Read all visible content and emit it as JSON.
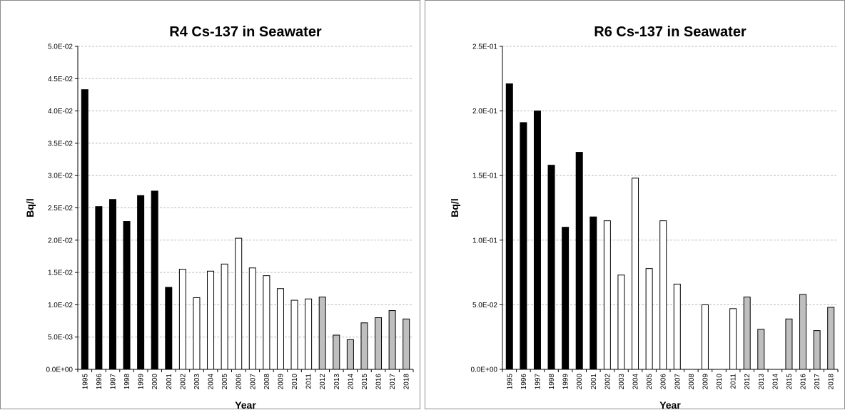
{
  "chart_data": [
    {
      "type": "bar",
      "title": "R4 Cs-137 in Seawater",
      "xlabel": "Year",
      "ylabel": "Bq/l",
      "ylim": [
        0,
        0.05
      ],
      "yticks": [
        "0.0E+00",
        "5.0E-03",
        "1.0E-02",
        "1.5E-02",
        "2.0E-02",
        "2.5E-02",
        "3.0E-02",
        "3.5E-02",
        "4.0E-02",
        "4.5E-02",
        "5.0E-02"
      ],
      "grid": true,
      "categories": [
        "1995",
        "1996",
        "1997",
        "1998",
        "1999",
        "2000",
        "2001",
        "2002",
        "2003",
        "2004",
        "2005",
        "2006",
        "2007",
        "2008",
        "2009",
        "2010",
        "2011",
        "2012",
        "2013",
        "2014",
        "2015",
        "2016",
        "2017",
        "2018"
      ],
      "values": [
        0.0433,
        0.0252,
        0.0263,
        0.0229,
        0.0269,
        0.0276,
        0.0127,
        0.0155,
        0.0111,
        0.0152,
        0.0163,
        0.0203,
        0.0157,
        0.0145,
        0.0125,
        0.0107,
        0.0109,
        0.0112,
        0.0053,
        0.0046,
        0.0072,
        0.008,
        0.0091,
        0.0078
      ],
      "bar_colors": [
        "#000000",
        "#000000",
        "#000000",
        "#000000",
        "#000000",
        "#000000",
        "#000000",
        "#ffffff",
        "#ffffff",
        "#ffffff",
        "#ffffff",
        "#ffffff",
        "#ffffff",
        "#ffffff",
        "#ffffff",
        "#ffffff",
        "#ffffff",
        "#bfbfbf",
        "#bfbfbf",
        "#bfbfbf",
        "#bfbfbf",
        "#bfbfbf",
        "#bfbfbf",
        "#bfbfbf"
      ]
    },
    {
      "type": "bar",
      "title": "R6 Cs-137 in Seawater",
      "xlabel": "Year",
      "ylabel": "Bq/l",
      "ylim": [
        0,
        0.25
      ],
      "yticks": [
        "0.0E+00",
        "5.0E-02",
        "1.0E-01",
        "1.5E-01",
        "2.0E-01",
        "2.5E-01"
      ],
      "grid": true,
      "categories": [
        "1995",
        "1996",
        "1997",
        "1998",
        "1999",
        "2000",
        "2001",
        "2002",
        "2003",
        "2004",
        "2005",
        "2006",
        "2007",
        "2008",
        "2009",
        "2010",
        "2011",
        "2012",
        "2013",
        "2014",
        "2015",
        "2016",
        "2017",
        "2018"
      ],
      "values": [
        0.221,
        0.191,
        0.2,
        0.158,
        0.11,
        0.168,
        0.118,
        0.115,
        0.073,
        0.148,
        0.078,
        0.115,
        0.066,
        null,
        0.05,
        null,
        0.047,
        0.056,
        0.031,
        null,
        0.039,
        0.058,
        0.03,
        0.048
      ],
      "bar_colors": [
        "#000000",
        "#000000",
        "#000000",
        "#000000",
        "#000000",
        "#000000",
        "#000000",
        "#ffffff",
        "#ffffff",
        "#ffffff",
        "#ffffff",
        "#ffffff",
        "#ffffff",
        "#ffffff",
        "#ffffff",
        "#ffffff",
        "#ffffff",
        "#bfbfbf",
        "#bfbfbf",
        "#bfbfbf",
        "#bfbfbf",
        "#bfbfbf",
        "#bfbfbf",
        "#bfbfbf"
      ]
    }
  ]
}
